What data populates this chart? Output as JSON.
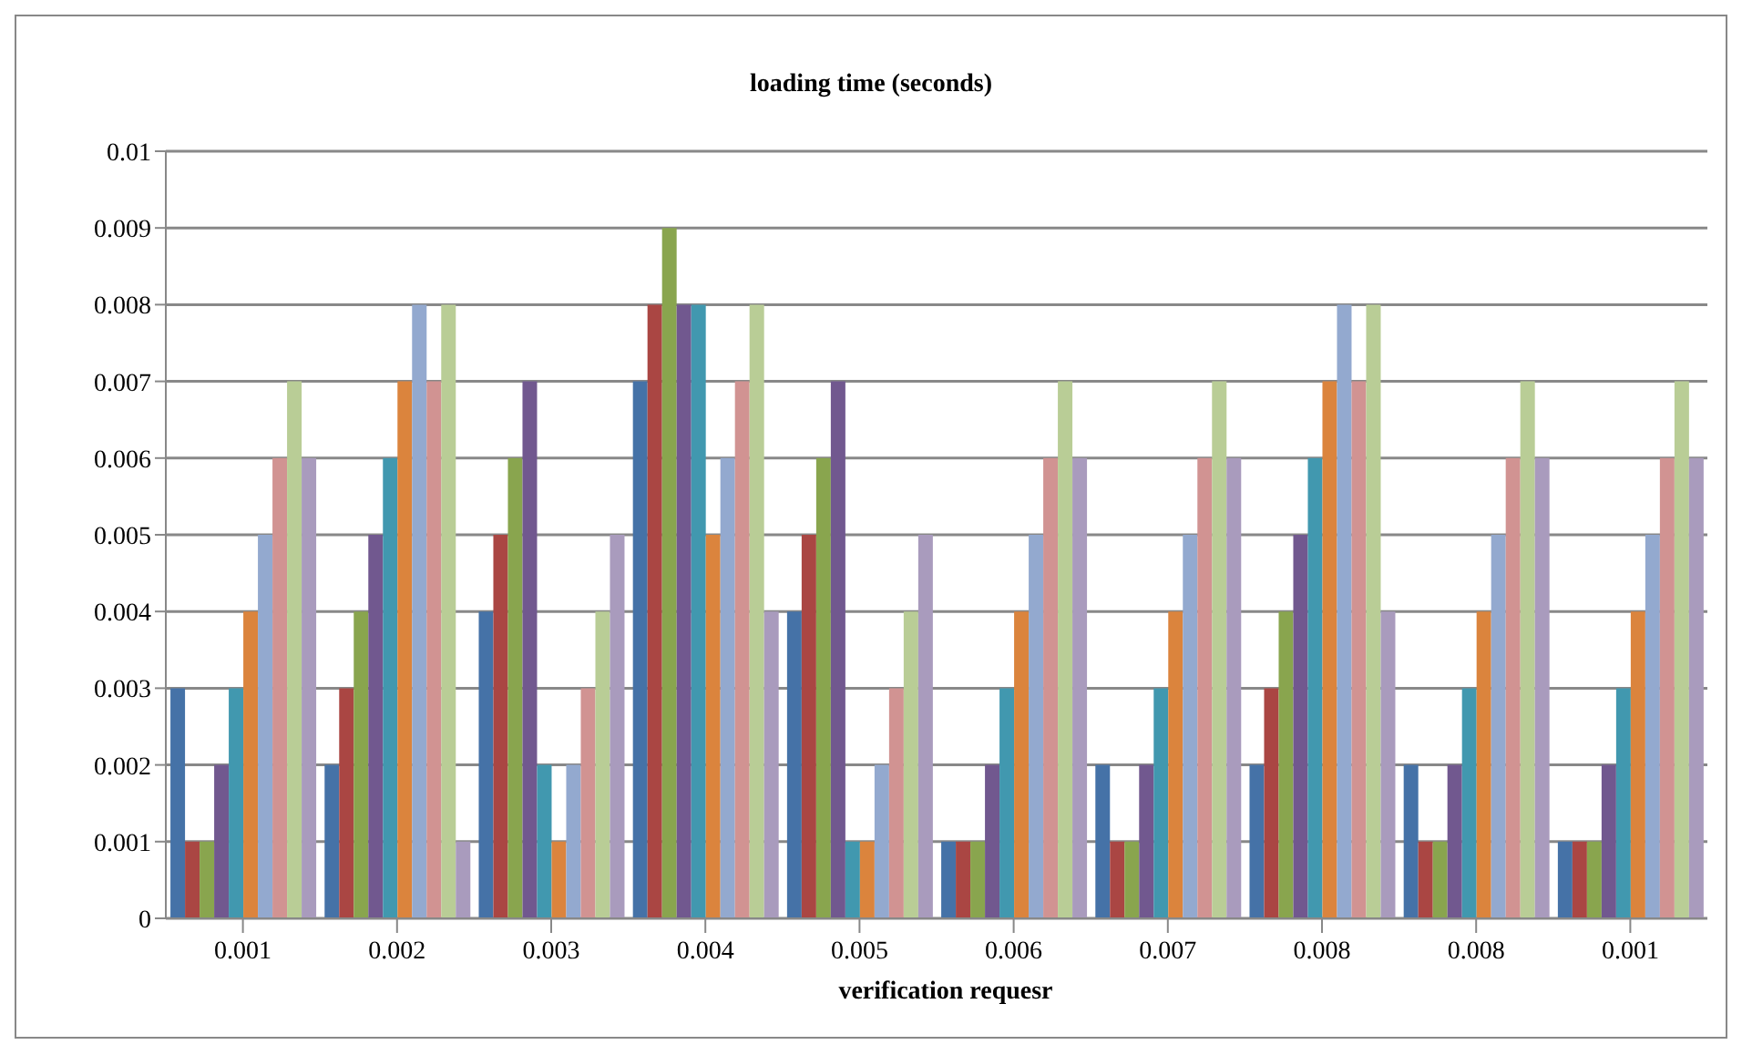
{
  "chart_data": {
    "type": "bar",
    "title": "loading time (seconds)",
    "xlabel": "verification requesr",
    "categories": [
      "0.001",
      "0.002",
      "0.003",
      "0.004",
      "0.005",
      "0.006",
      "0.007",
      "0.008",
      "0.008",
      "0.001"
    ],
    "series": [
      {
        "color": "#4572a7",
        "values": [
          0.003,
          0.002,
          0.004,
          0.007,
          0.004,
          0.001,
          0.002,
          0.002,
          0.002,
          0.001
        ]
      },
      {
        "color": "#aa4643",
        "values": [
          0.001,
          0.003,
          0.005,
          0.008,
          0.005,
          0.001,
          0.001,
          0.003,
          0.001,
          0.001
        ]
      },
      {
        "color": "#89a54e",
        "values": [
          0.001,
          0.004,
          0.006,
          0.009,
          0.006,
          0.001,
          0.001,
          0.004,
          0.001,
          0.001
        ]
      },
      {
        "color": "#71588f",
        "values": [
          0.002,
          0.005,
          0.007,
          0.008,
          0.007,
          0.002,
          0.002,
          0.005,
          0.002,
          0.002
        ]
      },
      {
        "color": "#4198af",
        "values": [
          0.003,
          0.006,
          0.002,
          0.008,
          0.001,
          0.003,
          0.003,
          0.006,
          0.003,
          0.003
        ]
      },
      {
        "color": "#db843d",
        "values": [
          0.004,
          0.007,
          0.001,
          0.005,
          0.001,
          0.004,
          0.004,
          0.007,
          0.004,
          0.004
        ]
      },
      {
        "color": "#93a9cf",
        "values": [
          0.005,
          0.008,
          0.002,
          0.006,
          0.002,
          0.005,
          0.005,
          0.008,
          0.005,
          0.005
        ]
      },
      {
        "color": "#d19392",
        "values": [
          0.006,
          0.007,
          0.003,
          0.007,
          0.003,
          0.006,
          0.006,
          0.007,
          0.006,
          0.006
        ]
      },
      {
        "color": "#b9cd96",
        "values": [
          0.007,
          0.008,
          0.004,
          0.008,
          0.004,
          0.007,
          0.007,
          0.008,
          0.007,
          0.007
        ]
      },
      {
        "color": "#a99bbd",
        "values": [
          0.006,
          0.001,
          0.005,
          0.004,
          0.005,
          0.006,
          0.006,
          0.004,
          0.006,
          0.006
        ]
      }
    ],
    "ylim": [
      0,
      0.01
    ],
    "yticks": [
      0,
      0.001,
      0.002,
      0.003,
      0.004,
      0.005,
      0.006,
      0.007,
      0.008,
      0.009,
      0.01
    ],
    "grid": "y",
    "legend": false
  }
}
